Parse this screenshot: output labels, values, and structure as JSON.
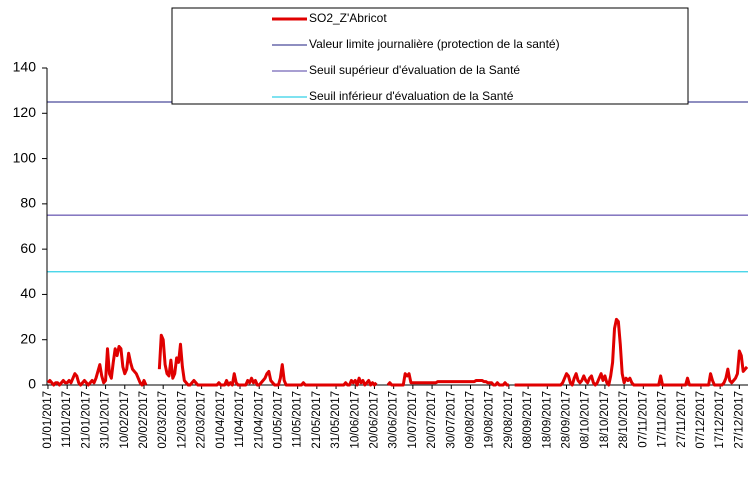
{
  "chart_data": {
    "type": "line",
    "categories": [
      "01/01/2017",
      null,
      null,
      null,
      null,
      null,
      null,
      null,
      null,
      null,
      "11/01/2017",
      null,
      null,
      null,
      null,
      null,
      null,
      null,
      null,
      null,
      "21/01/2017",
      null,
      null,
      null,
      null,
      null,
      null,
      null,
      null,
      null,
      "31/01/2017",
      null,
      null,
      null,
      null,
      null,
      null,
      null,
      null,
      null,
      "10/02/2017",
      null,
      null,
      null,
      null,
      null,
      null,
      null,
      null,
      null,
      "20/02/2017",
      null,
      null,
      null,
      null,
      null,
      null,
      null,
      null,
      null,
      "02/03/2017",
      null,
      null,
      null,
      null,
      null,
      null,
      null,
      null,
      null,
      "12/03/2017",
      null,
      null,
      null,
      null,
      null,
      null,
      null,
      null,
      null,
      "22/03/2017",
      null,
      null,
      null,
      null,
      null,
      null,
      null,
      null,
      null,
      "01/04/2017",
      null,
      null,
      null,
      null,
      null,
      null,
      null,
      null,
      null,
      "11/04/2017",
      null,
      null,
      null,
      null,
      null,
      null,
      null,
      null,
      null,
      "21/04/2017",
      null,
      null,
      null,
      null,
      null,
      null,
      null,
      null,
      null,
      "01/05/2017",
      null,
      null,
      null,
      null,
      null,
      null,
      null,
      null,
      null,
      "11/05/2017",
      null,
      null,
      null,
      null,
      null,
      null,
      null,
      null,
      null,
      "21/05/2017",
      null,
      null,
      null,
      null,
      null,
      null,
      null,
      null,
      null,
      "31/05/2017",
      null,
      null,
      null,
      null,
      null,
      null,
      null,
      null,
      null,
      "10/06/2017",
      null,
      null,
      null,
      null,
      null,
      null,
      null,
      null,
      null,
      "20/06/2017",
      null,
      null,
      null,
      null,
      null,
      null,
      null,
      null,
      null,
      "30/06/2017",
      null,
      null,
      null,
      null,
      null,
      null,
      null,
      null,
      null,
      "10/07/2017",
      null,
      null,
      null,
      null,
      null,
      null,
      null,
      null,
      null,
      "20/07/2017",
      null,
      null,
      null,
      null,
      null,
      null,
      null,
      null,
      null,
      "30/07/2017",
      null,
      null,
      null,
      null,
      null,
      null,
      null,
      null,
      null,
      "09/08/2017",
      null,
      null,
      null,
      null,
      null,
      null,
      null,
      null,
      null,
      "19/08/2017",
      null,
      null,
      null,
      null,
      null,
      null,
      null,
      null,
      null,
      "29/08/2017",
      null,
      null,
      null,
      null,
      null,
      null,
      null,
      null,
      null,
      "08/09/2017",
      null,
      null,
      null,
      null,
      null,
      null,
      null,
      null,
      null,
      "18/09/2017",
      null,
      null,
      null,
      null,
      null,
      null,
      null,
      null,
      null,
      "28/09/2017",
      null,
      null,
      null,
      null,
      null,
      null,
      null,
      null,
      null,
      "08/10/2017",
      null,
      null,
      null,
      null,
      null,
      null,
      null,
      null,
      null,
      "18/10/2017",
      null,
      null,
      null,
      null,
      null,
      null,
      null,
      null,
      null,
      "28/10/2017",
      null,
      null,
      null,
      null,
      null,
      null,
      null,
      null,
      null,
      "07/11/2017",
      null,
      null,
      null,
      null,
      null,
      null,
      null,
      null,
      null,
      "17/11/2017",
      null,
      null,
      null,
      null,
      null,
      null,
      null,
      null,
      null,
      "27/11/2017",
      null,
      null,
      null,
      null,
      null,
      null,
      null,
      null,
      null,
      "07/12/2017",
      null,
      null,
      null,
      null,
      null,
      null,
      null,
      null,
      null,
      "17/12/2017",
      null,
      null,
      null,
      null,
      null,
      null,
      null,
      null,
      null,
      "27/12/2017",
      null,
      null,
      null,
      null
    ],
    "series": [
      {
        "name": "SO2_Z'Abricot",
        "color": "#e00000",
        "values": [
          1,
          2,
          1,
          0,
          1,
          1,
          0,
          1,
          2,
          1,
          1,
          2,
          1,
          3,
          5,
          4,
          1,
          0,
          1,
          2,
          1,
          0,
          1,
          2,
          1,
          3,
          6,
          9,
          4,
          1,
          2,
          16,
          5,
          3,
          10,
          16,
          13,
          17,
          16,
          8,
          5,
          7,
          14,
          10,
          7,
          6,
          5,
          3,
          1,
          0,
          2,
          0,
          null,
          null,
          null,
          null,
          null,
          null,
          7,
          22,
          20,
          9,
          5,
          4,
          11,
          3,
          5,
          12,
          10,
          18,
          8,
          2,
          1,
          0,
          0,
          1,
          2,
          1,
          0,
          0,
          0,
          0,
          0,
          0,
          0,
          0,
          0,
          0,
          0,
          1,
          0,
          0,
          0,
          2,
          0,
          1,
          0,
          5,
          1,
          0,
          0,
          0,
          0,
          0,
          2,
          1,
          3,
          1,
          2,
          0,
          0,
          1,
          2,
          3,
          5,
          6,
          2,
          1,
          0,
          0,
          0,
          3,
          9,
          2,
          0,
          0,
          0,
          0,
          0,
          0,
          0,
          0,
          0,
          1,
          0,
          0,
          0,
          0,
          0,
          0,
          0,
          0,
          0,
          0,
          0,
          0,
          0,
          0,
          0,
          0,
          0,
          0,
          0,
          0,
          0,
          1,
          0,
          0,
          2,
          1,
          2,
          0,
          3,
          1,
          2,
          0,
          1,
          2,
          0,
          1,
          0,
          1,
          null,
          null,
          null,
          null,
          null,
          0,
          1,
          0,
          0,
          0,
          0,
          0,
          0,
          0,
          5,
          4,
          5,
          1,
          1,
          1,
          1,
          1,
          1,
          1,
          1,
          1,
          1,
          1,
          1,
          1,
          1,
          1.5,
          1.5,
          1.5,
          1.5,
          1.5,
          1.5,
          1.5,
          1.5,
          1.5,
          1.5,
          1.5,
          1.5,
          1.5,
          1.5,
          1.5,
          1.5,
          1.5,
          1.5,
          1.5,
          1.5,
          2,
          2,
          2,
          2,
          1.5,
          1.5,
          1,
          1,
          1,
          0,
          0,
          1,
          0,
          0,
          0,
          1,
          0,
          0,
          null,
          null,
          0,
          0,
          0,
          0,
          0,
          0,
          0,
          0,
          0,
          0,
          0,
          0,
          0,
          0,
          0,
          0,
          0,
          0,
          0,
          0,
          0,
          0,
          0,
          0,
          0,
          1,
          3,
          5,
          4,
          1,
          0,
          3,
          5,
          2,
          1,
          2,
          4,
          2,
          1,
          3,
          4,
          1,
          0,
          1,
          3,
          5,
          2,
          4,
          1,
          0,
          4,
          10,
          25,
          29,
          28,
          18,
          5,
          1,
          3,
          2,
          3,
          1,
          0,
          0,
          0,
          0,
          0,
          0,
          0,
          0,
          0,
          0,
          0,
          0,
          0,
          0,
          4,
          0,
          0,
          0,
          0,
          0,
          0,
          0,
          0,
          0,
          0,
          0,
          0,
          0,
          3,
          0,
          0,
          0,
          0,
          0,
          0,
          0,
          0,
          0,
          0,
          0,
          5,
          2,
          0,
          0,
          0,
          0,
          0,
          1,
          3,
          7,
          2,
          1,
          2,
          3,
          5,
          15,
          13,
          6,
          7,
          8
        ]
      }
    ],
    "reference_lines": [
      {
        "name": "Valeur limite journalière (protection de la santé)",
        "color": "#4b4b9b",
        "value": 125
      },
      {
        "name": "Seuil supérieur d'évaluation de la Santé",
        "color": "#7566b8",
        "value": 75
      },
      {
        "name": "Seuil inférieur d'évaluation de la Santé",
        "color": "#33d0e6",
        "value": 50
      }
    ],
    "ylim": [
      0,
      140
    ],
    "yticks": [
      0,
      20,
      40,
      60,
      80,
      100,
      120,
      140
    ],
    "grid": false
  }
}
